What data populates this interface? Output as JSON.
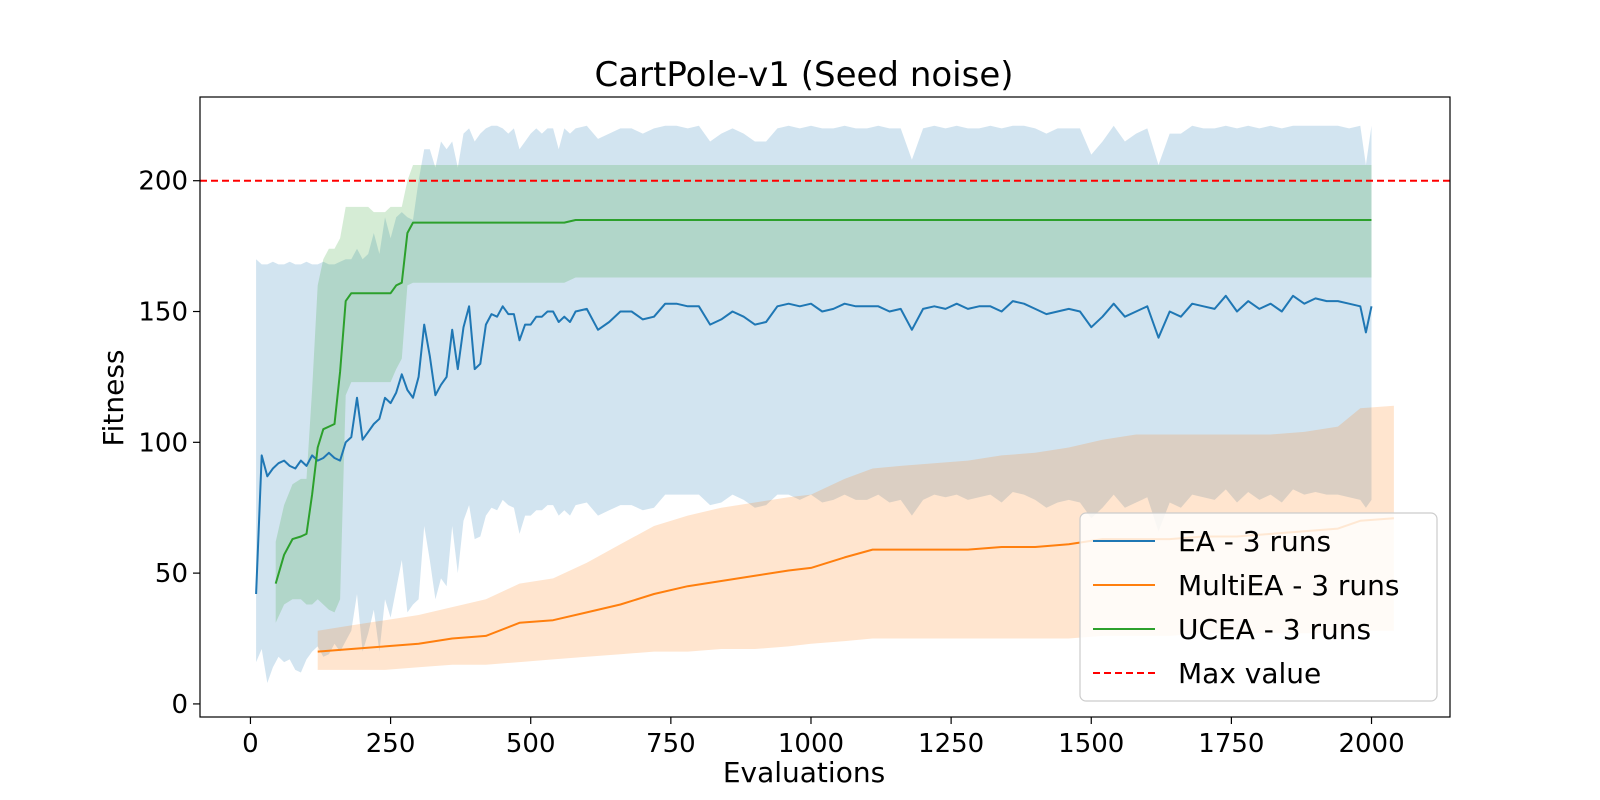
{
  "chart_data": {
    "type": "line",
    "title": "CartPole-v1 (Seed noise)",
    "xlabel": "Evaluations",
    "ylabel": "Fitness",
    "xlim": [
      -90,
      2140
    ],
    "ylim": [
      -5,
      232
    ],
    "xticks": [
      0,
      250,
      500,
      750,
      1000,
      1250,
      1500,
      1750,
      2000
    ],
    "yticks": [
      0,
      50,
      100,
      150,
      200
    ],
    "grid": false,
    "legend_position": "lower-right",
    "reference_line": {
      "name": "Max value",
      "y": 200,
      "color": "#ff0000",
      "style": "dashed"
    },
    "series": [
      {
        "name": "EA - 3 runs",
        "color": "#1f77b4",
        "x": [
          10,
          20,
          30,
          40,
          50,
          60,
          70,
          80,
          90,
          100,
          110,
          120,
          130,
          140,
          150,
          160,
          170,
          180,
          190,
          200,
          210,
          220,
          230,
          240,
          250,
          260,
          270,
          280,
          290,
          300,
          310,
          320,
          330,
          340,
          350,
          360,
          370,
          380,
          390,
          400,
          410,
          420,
          430,
          440,
          450,
          460,
          470,
          480,
          490,
          500,
          510,
          520,
          530,
          540,
          550,
          560,
          570,
          580,
          600,
          620,
          640,
          660,
          680,
          700,
          720,
          740,
          760,
          780,
          800,
          820,
          840,
          860,
          880,
          900,
          920,
          940,
          960,
          980,
          1000,
          1020,
          1040,
          1060,
          1080,
          1100,
          1120,
          1140,
          1160,
          1180,
          1200,
          1220,
          1240,
          1260,
          1280,
          1300,
          1320,
          1340,
          1360,
          1380,
          1400,
          1420,
          1440,
          1460,
          1480,
          1500,
          1520,
          1540,
          1560,
          1580,
          1600,
          1620,
          1640,
          1660,
          1680,
          1700,
          1720,
          1740,
          1760,
          1780,
          1800,
          1820,
          1840,
          1860,
          1880,
          1900,
          1920,
          1940,
          1960,
          1980,
          1990,
          2000
        ],
        "y": [
          42,
          95,
          87,
          90,
          92,
          93,
          91,
          90,
          93,
          91,
          95,
          93,
          94,
          96,
          94,
          93,
          100,
          102,
          117,
          101,
          104,
          107,
          109,
          117,
          115,
          119,
          126,
          120,
          117,
          125,
          145,
          133,
          118,
          122,
          125,
          143,
          128,
          144,
          152,
          128,
          130,
          145,
          149,
          148,
          152,
          149,
          149,
          139,
          145,
          145,
          148,
          148,
          150,
          150,
          146,
          148,
          146,
          150,
          151,
          143,
          146,
          150,
          150,
          147,
          148,
          153,
          153,
          152,
          152,
          145,
          147,
          150,
          148,
          145,
          146,
          152,
          153,
          152,
          153,
          150,
          151,
          153,
          152,
          152,
          152,
          150,
          151,
          143,
          151,
          152,
          151,
          153,
          151,
          152,
          152,
          150,
          154,
          153,
          151,
          149,
          150,
          151,
          150,
          144,
          148,
          153,
          148,
          150,
          152,
          140,
          150,
          148,
          153,
          152,
          151,
          156,
          150,
          154,
          151,
          153,
          150,
          156,
          153,
          155,
          154,
          154,
          153,
          152,
          142,
          152
        ],
        "upper": [
          170,
          168,
          168,
          169,
          168,
          168,
          169,
          168,
          168,
          169,
          168,
          168,
          169,
          168,
          168,
          169,
          170,
          170,
          174,
          170,
          172,
          180,
          172,
          186,
          178,
          186,
          188,
          186,
          185,
          200,
          212,
          212,
          205,
          215,
          212,
          215,
          205,
          218,
          220,
          215,
          218,
          220,
          221,
          221,
          220,
          218,
          220,
          212,
          215,
          218,
          220,
          218,
          220,
          220,
          212,
          220,
          218,
          220,
          221,
          216,
          218,
          220,
          220,
          218,
          220,
          221,
          221,
          220,
          221,
          215,
          218,
          220,
          218,
          215,
          215,
          220,
          221,
          220,
          221,
          220,
          220,
          221,
          220,
          220,
          221,
          220,
          220,
          208,
          220,
          221,
          220,
          221,
          220,
          220,
          221,
          220,
          221,
          221,
          220,
          218,
          220,
          220,
          220,
          210,
          215,
          221,
          215,
          218,
          220,
          206,
          218,
          218,
          221,
          220,
          220,
          221,
          220,
          221,
          220,
          221,
          220,
          221,
          221,
          221,
          221,
          221,
          220,
          221,
          206,
          221
        ],
        "lower": [
          16,
          21,
          8,
          14,
          18,
          16,
          17,
          13,
          12,
          17,
          20,
          22,
          18,
          19,
          23,
          20,
          24,
          28,
          42,
          20,
          27,
          36,
          20,
          40,
          33,
          44,
          55,
          35,
          38,
          40,
          68,
          55,
          40,
          48,
          45,
          68,
          50,
          70,
          76,
          63,
          64,
          72,
          75,
          74,
          78,
          76,
          75,
          65,
          72,
          72,
          74,
          74,
          76,
          76,
          72,
          74,
          72,
          76,
          77,
          72,
          74,
          76,
          76,
          74,
          75,
          80,
          80,
          80,
          80,
          76,
          77,
          80,
          78,
          75,
          76,
          80,
          80,
          78,
          80,
          77,
          78,
          80,
          78,
          78,
          80,
          77,
          78,
          72,
          78,
          80,
          79,
          80,
          78,
          79,
          80,
          77,
          81,
          80,
          78,
          75,
          77,
          78,
          77,
          71,
          75,
          80,
          75,
          77,
          79,
          66,
          77,
          75,
          80,
          79,
          78,
          82,
          77,
          81,
          78,
          80,
          77,
          82,
          80,
          81,
          80,
          80,
          79,
          78,
          75,
          78
        ]
      },
      {
        "name": "MultiEA - 3 runs",
        "color": "#ff7f0e",
        "x": [
          120,
          180,
          240,
          300,
          360,
          420,
          480,
          540,
          600,
          660,
          720,
          780,
          840,
          900,
          960,
          1000,
          1060,
          1110,
          1160,
          1220,
          1280,
          1340,
          1400,
          1460,
          1520,
          1580,
          1640,
          1700,
          1760,
          1820,
          1880,
          1940,
          1980,
          2040
        ],
        "y": [
          20,
          21,
          22,
          23,
          25,
          26,
          31,
          32,
          35,
          38,
          42,
          45,
          47,
          49,
          51,
          52,
          56,
          59,
          59,
          59,
          59,
          60,
          60,
          61,
          63,
          63,
          63,
          64,
          64,
          65,
          66,
          67,
          70,
          71
        ],
        "upper": [
          28,
          30,
          32,
          34,
          37,
          40,
          46,
          48,
          54,
          61,
          68,
          72,
          75,
          77,
          79,
          80,
          86,
          90,
          91,
          92,
          93,
          95,
          96,
          98,
          101,
          103,
          103,
          103,
          103,
          103,
          104,
          106,
          113,
          114
        ],
        "lower": [
          13,
          13,
          13,
          14,
          15,
          15,
          16,
          17,
          18,
          19,
          20,
          20,
          21,
          21,
          22,
          23,
          24,
          25,
          25,
          25,
          25,
          25,
          25,
          25,
          26,
          26,
          26,
          27,
          27,
          27,
          27,
          27,
          28,
          28
        ]
      },
      {
        "name": "UCEA - 3 runs",
        "color": "#2ca02c",
        "x": [
          45,
          60,
          75,
          90,
          100,
          110,
          120,
          130,
          140,
          150,
          160,
          170,
          180,
          190,
          200,
          210,
          220,
          230,
          240,
          250,
          260,
          270,
          280,
          290,
          300,
          310,
          320,
          400,
          500,
          560,
          580,
          600,
          700,
          800,
          900,
          1000,
          1200,
          1400,
          1600,
          1800,
          2000
        ],
        "y": [
          46,
          57,
          63,
          64,
          65,
          80,
          98,
          105,
          106,
          107,
          127,
          154,
          157,
          157,
          157,
          157,
          157,
          157,
          157,
          157,
          160,
          161,
          180,
          184,
          184,
          184,
          184,
          184,
          184,
          184,
          185,
          185,
          185,
          185,
          185,
          185,
          185,
          185,
          185,
          185,
          185
        ],
        "upper": [
          62,
          76,
          84,
          86,
          86,
          120,
          160,
          170,
          174,
          174,
          178,
          190,
          190,
          190,
          190,
          190,
          188,
          188,
          188,
          190,
          190,
          190,
          200,
          206,
          206,
          206,
          206,
          206,
          206,
          206,
          206,
          206,
          206,
          206,
          206,
          206,
          206,
          206,
          206,
          206,
          206
        ],
        "lower": [
          31,
          38,
          40,
          40,
          38,
          38,
          40,
          38,
          36,
          35,
          40,
          118,
          123,
          123,
          123,
          123,
          123,
          123,
          123,
          123,
          128,
          132,
          160,
          161,
          161,
          161,
          161,
          161,
          161,
          161,
          163,
          163,
          163,
          163,
          163,
          163,
          163,
          163,
          163,
          163,
          163
        ]
      }
    ]
  }
}
